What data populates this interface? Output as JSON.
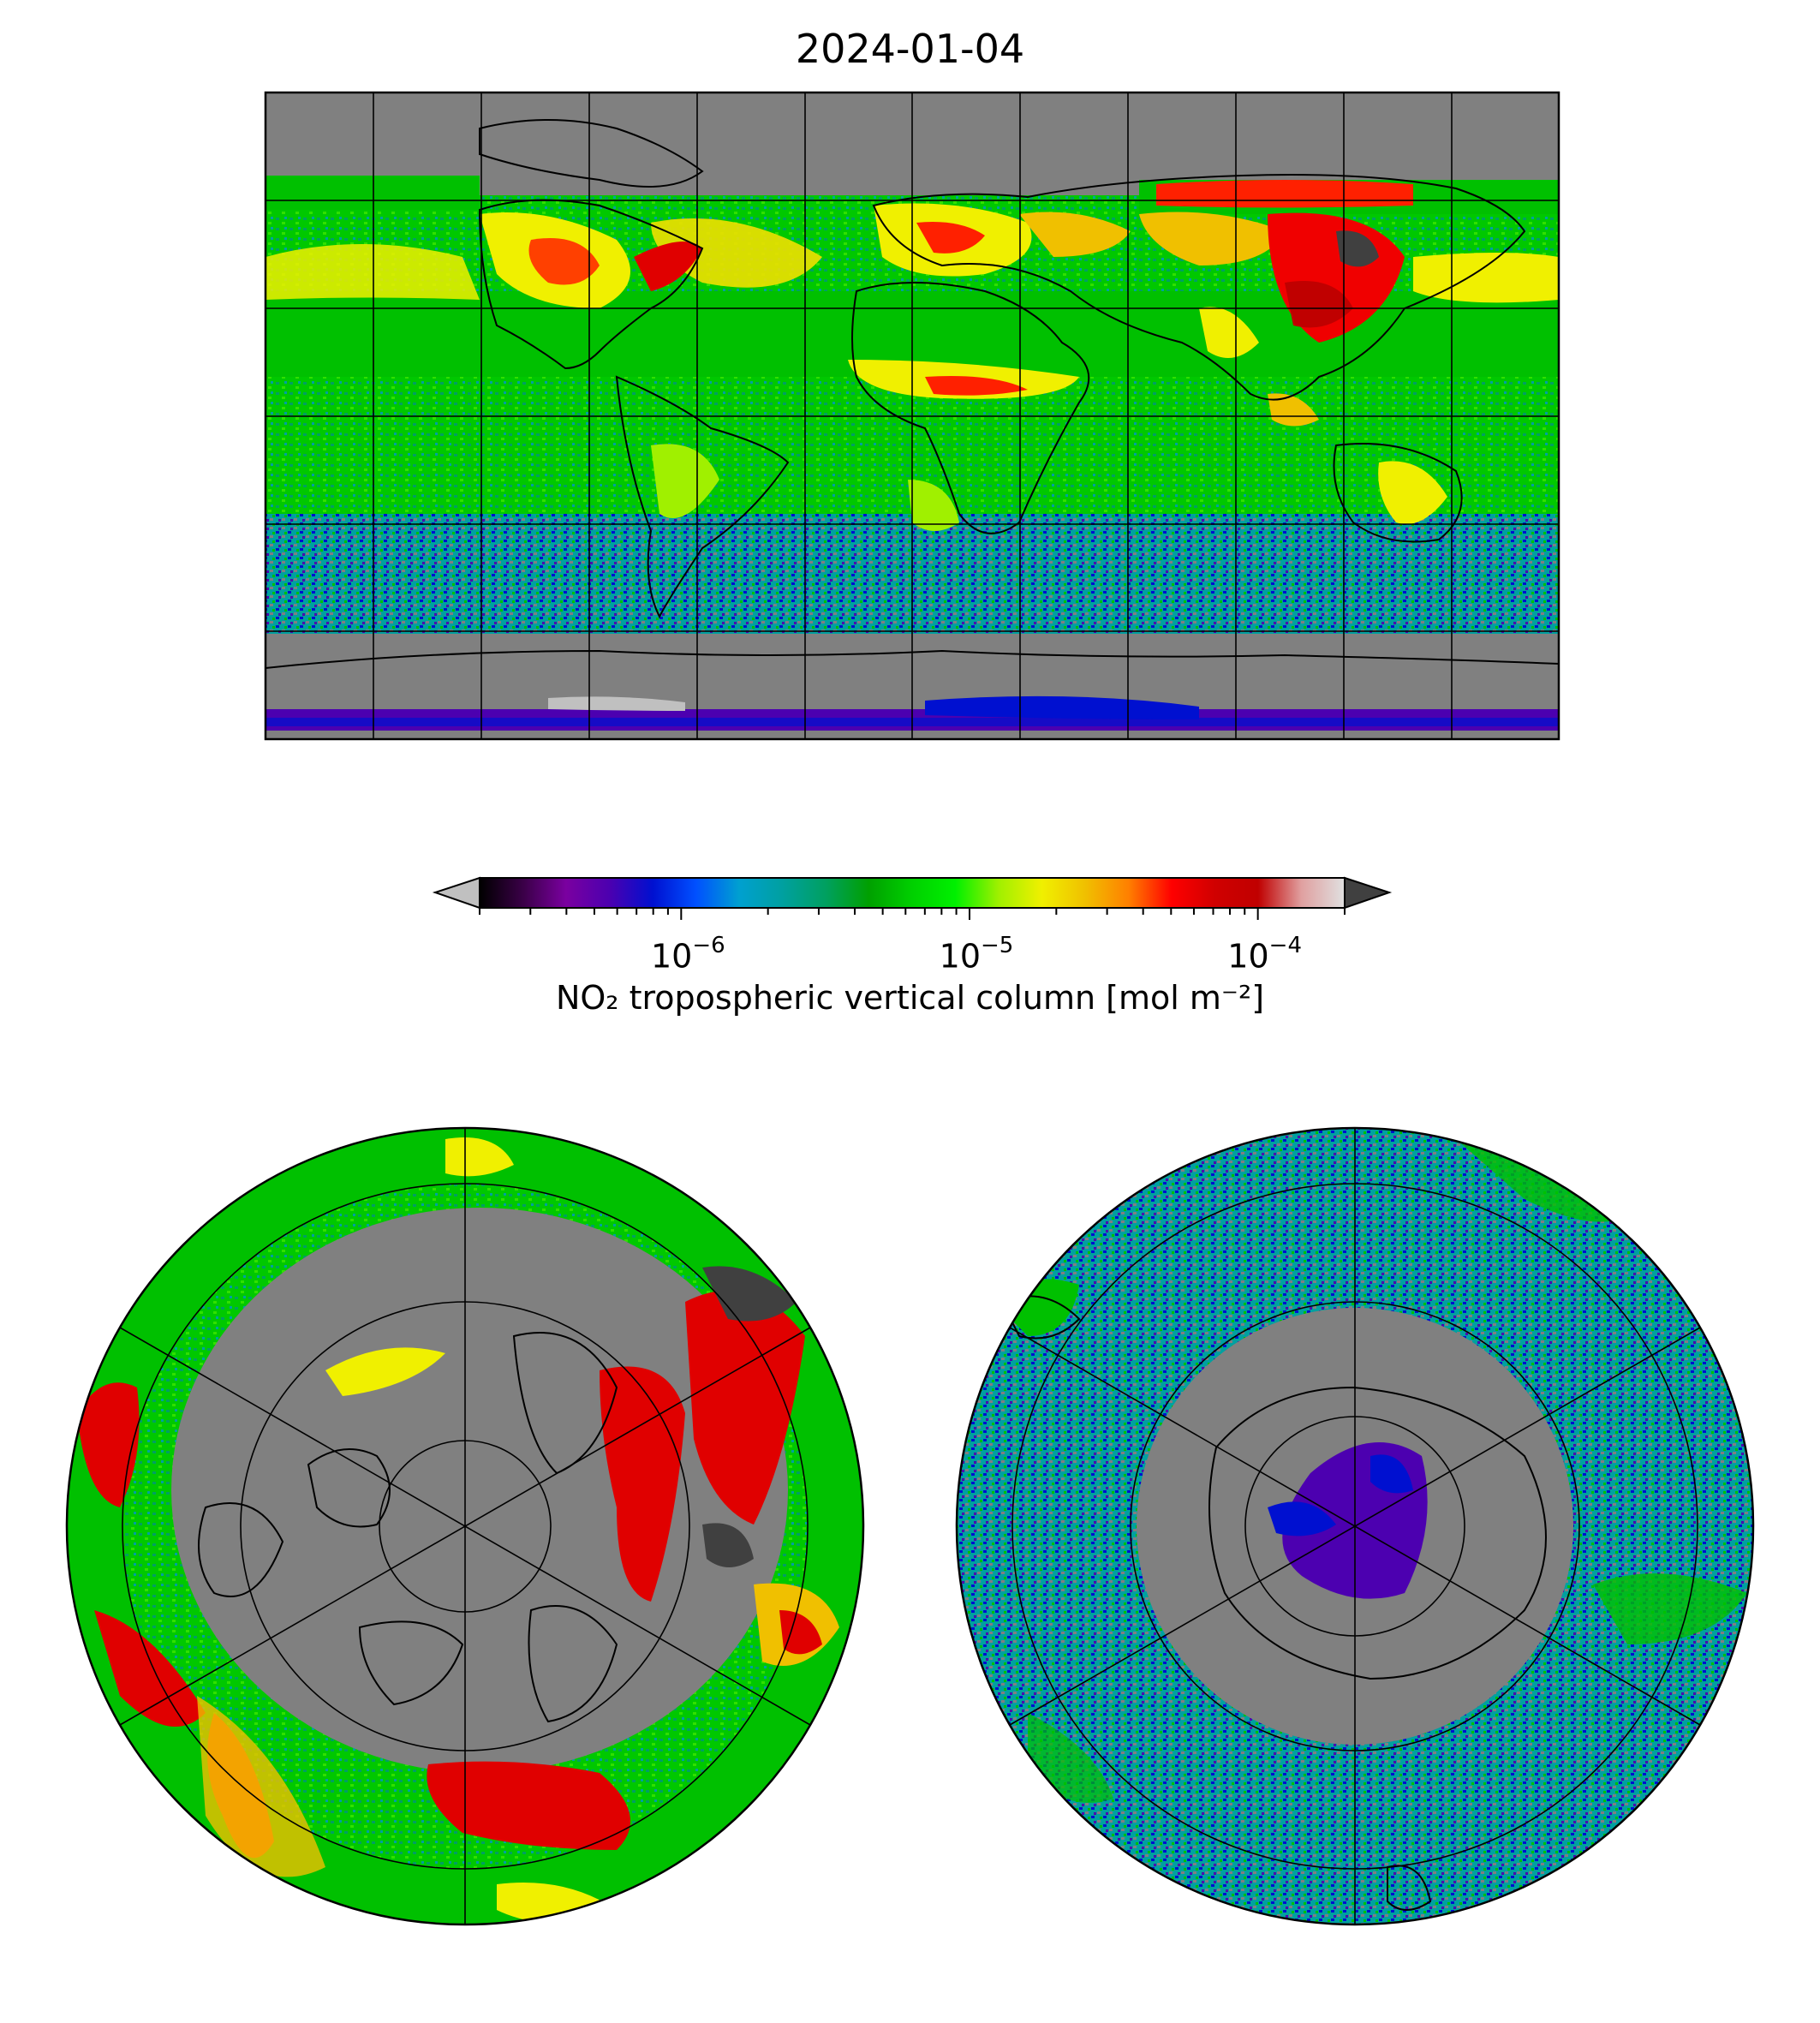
{
  "figure": {
    "title": "2024-01-04"
  },
  "colorbar": {
    "label": "NO₂ tropospheric vertical column [mol m⁻²]",
    "scale": "log",
    "range": [
      2e-07,
      0.0002
    ],
    "extend": "both",
    "tick_labels": [
      {
        "base": "10",
        "exp": "−6",
        "value": 1e-06
      },
      {
        "base": "10",
        "exp": "−5",
        "value": 1e-05
      },
      {
        "base": "10",
        "exp": "−4",
        "value": 0.0001
      }
    ],
    "colormap_stops": [
      "#000000",
      "#3a0047",
      "#7a00a0",
      "#4c00b0",
      "#0010d0",
      "#0050ff",
      "#00a0d0",
      "#00a0a0",
      "#00a060",
      "#00a000",
      "#00d000",
      "#00f000",
      "#a0f000",
      "#f0f000",
      "#f0c000",
      "#ff8000",
      "#ff0000",
      "#d00000",
      "#c00000",
      "#e0a0a0",
      "#e0e0e0"
    ],
    "under_color": "#c0c0c0",
    "over_color": "#404040"
  },
  "maps": {
    "global": {
      "projection": "plate-carree",
      "nodata_color": "#808080"
    },
    "north_polar": {
      "projection": "north-polar-stereographic"
    },
    "south_polar": {
      "projection": "south-polar-stereographic"
    }
  }
}
